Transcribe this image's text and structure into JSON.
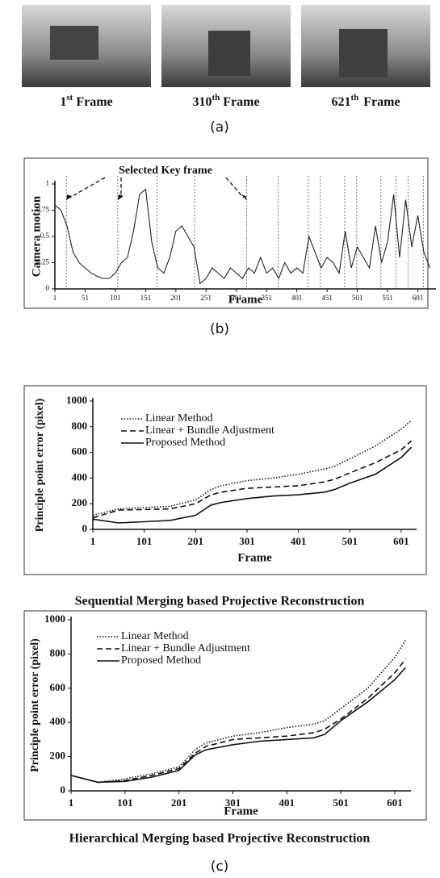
{
  "figure_a": {
    "frames": [
      {
        "ordinal": "1",
        "suffix": "st",
        "word": "Frame"
      },
      {
        "ordinal": "310",
        "suffix": "th",
        "word": "Frame"
      },
      {
        "ordinal": "621",
        "suffix": "th",
        "word": "Frame"
      }
    ]
  },
  "captions": {
    "a": "(a)",
    "b": "(b)",
    "c": "(c)"
  },
  "chart_data": [
    {
      "type": "motion",
      "xlabel": "Frame",
      "ylabel": "Camera motion",
      "annotation": "Selected Key frame",
      "x": [
        1,
        11,
        21,
        31,
        41,
        51,
        61,
        71,
        81,
        91,
        101,
        111,
        121,
        131,
        141,
        151,
        161,
        171,
        181,
        191,
        201,
        211,
        221,
        231,
        241,
        251,
        261,
        271,
        281,
        291,
        301,
        311,
        321,
        331,
        341,
        351,
        361,
        371,
        381,
        391,
        401,
        411,
        421,
        431,
        441,
        451,
        461,
        471,
        481,
        491,
        501,
        511,
        521,
        531,
        541,
        551,
        561,
        571,
        581,
        591,
        601,
        611,
        621
      ],
      "series": [
        {
          "color": "#222222",
          "values": [
            0.8,
            0.75,
            0.6,
            0.35,
            0.25,
            0.2,
            0.15,
            0.12,
            0.1,
            0.1,
            0.15,
            0.25,
            0.3,
            0.55,
            0.9,
            0.95,
            0.45,
            0.2,
            0.15,
            0.3,
            0.55,
            0.6,
            0.5,
            0.4,
            0.05,
            0.1,
            0.2,
            0.15,
            0.1,
            0.2,
            0.15,
            0.1,
            0.2,
            0.15,
            0.3,
            0.15,
            0.2,
            0.1,
            0.25,
            0.15,
            0.2,
            0.15,
            0.5,
            0.35,
            0.2,
            0.3,
            0.25,
            0.15,
            0.55,
            0.2,
            0.4,
            0.3,
            0.2,
            0.6,
            0.25,
            0.45,
            0.9,
            0.3,
            0.85,
            0.4,
            0.7,
            0.35,
            0.2
          ]
        }
      ],
      "key_frames": [
        20,
        105,
        170,
        232,
        318,
        370,
        420,
        440,
        480,
        500,
        540,
        565,
        585,
        610
      ],
      "xlim": [
        1,
        631
      ],
      "ylim": [
        0,
        1
      ],
      "xticks": [
        1,
        51,
        101,
        151,
        201,
        251,
        301,
        351,
        401,
        451,
        501,
        551,
        601
      ],
      "yticks": [
        0,
        0.25,
        0.5,
        0.75,
        1
      ]
    },
    {
      "type": "line",
      "title": "Sequential Merging based Projective Reconstruction",
      "xlabel": "Frame",
      "ylabel": "Principle point error (pixel)",
      "legend": "upper left",
      "x": [
        1,
        51,
        101,
        151,
        201,
        231,
        251,
        301,
        351,
        401,
        451,
        471,
        501,
        551,
        601,
        621
      ],
      "series": [
        {
          "name": "Linear Method",
          "color": "#111111",
          "line_style": "dotted",
          "values": [
            110,
            160,
            170,
            180,
            230,
            310,
            340,
            380,
            400,
            430,
            470,
            490,
            550,
            650,
            780,
            850
          ]
        },
        {
          "name": "Linear + Bundle Adjustment",
          "color": "#111111",
          "line_style": "dashed",
          "values": [
            90,
            150,
            155,
            160,
            200,
            270,
            290,
            320,
            330,
            340,
            370,
            390,
            440,
            520,
            620,
            690
          ]
        },
        {
          "name": "Proposed Method",
          "color": "#111111",
          "line_style": "solid",
          "values": [
            80,
            50,
            60,
            70,
            110,
            190,
            210,
            240,
            260,
            270,
            290,
            310,
            360,
            430,
            560,
            640
          ]
        }
      ],
      "xlim": [
        1,
        631
      ],
      "ylim": [
        0,
        1000
      ],
      "xticks": [
        1,
        101,
        201,
        301,
        401,
        501,
        601
      ],
      "yticks": [
        0,
        200,
        400,
        600,
        800,
        1000
      ]
    },
    {
      "type": "line",
      "title": "Hierarchical Merging based Projective Reconstruction",
      "xlabel": "Frame",
      "ylabel": "Principle point error (pixel)",
      "legend": "upper left",
      "x": [
        1,
        51,
        101,
        151,
        201,
        231,
        251,
        301,
        351,
        401,
        451,
        471,
        501,
        551,
        601,
        621
      ],
      "series": [
        {
          "name": "Linear Method",
          "color": "#111111",
          "line_style": "dotted",
          "values": [
            90,
            50,
            70,
            100,
            140,
            240,
            280,
            320,
            340,
            370,
            390,
            410,
            480,
            600,
            780,
            880
          ]
        },
        {
          "name": "Linear + Bundle Adjustment",
          "color": "#111111",
          "line_style": "dashed",
          "values": [
            90,
            50,
            60,
            90,
            130,
            220,
            260,
            300,
            310,
            320,
            340,
            360,
            420,
            540,
            690,
            770
          ]
        },
        {
          "name": "Proposed Method",
          "color": "#111111",
          "line_style": "solid",
          "values": [
            90,
            50,
            55,
            80,
            120,
            210,
            240,
            270,
            290,
            300,
            310,
            330,
            410,
            520,
            650,
            720
          ]
        }
      ],
      "xlim": [
        1,
        631
      ],
      "ylim": [
        0,
        1000
      ],
      "xticks": [
        1,
        101,
        201,
        301,
        401,
        501,
        601
      ],
      "yticks": [
        0,
        200,
        400,
        600,
        800,
        1000
      ]
    }
  ]
}
